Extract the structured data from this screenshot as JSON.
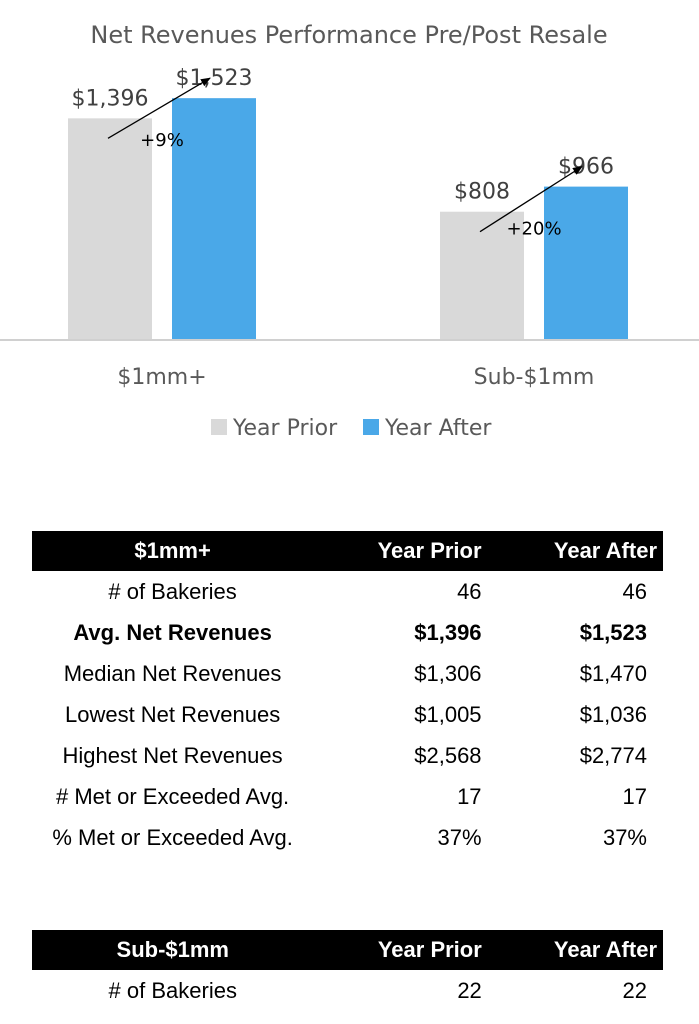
{
  "chart_data": {
    "type": "bar",
    "title": "Net Revenues Performance Pre/Post Resale",
    "categories": [
      "$1mm+",
      "Sub-$1mm"
    ],
    "series": [
      {
        "name": "Year Prior",
        "values": [
          1396,
          808
        ],
        "labels": [
          "$1,396",
          "$808"
        ],
        "color": "#d9d9d9"
      },
      {
        "name": "Year After",
        "values": [
          1523,
          966
        ],
        "labels": [
          "$1,523",
          "$966"
        ],
        "color": "#4aa8e8"
      }
    ],
    "annotations": [
      "+9%",
      "+20%"
    ],
    "ylim": [
      0,
      1650
    ],
    "grid": false,
    "legend": "bottom"
  },
  "tables": [
    {
      "headers": [
        "$1mm+",
        "Year Prior",
        "Year After"
      ],
      "rows": [
        {
          "label": "# of Bakeries",
          "prior": "46",
          "after": "46"
        },
        {
          "label": "Avg. Net Revenues",
          "prior": "$1,396",
          "after": "$1,523"
        },
        {
          "label": "Median Net Revenues",
          "prior": "$1,306",
          "after": "$1,470"
        },
        {
          "label": "Lowest Net Revenues",
          "prior": "$1,005",
          "after": "$1,036"
        },
        {
          "label": "Highest Net Revenues",
          "prior": "$2,568",
          "after": "$2,774"
        },
        {
          "label": "# Met or Exceeded Avg.",
          "prior": "17",
          "after": "17"
        },
        {
          "label": "% Met or Exceeded Avg.",
          "prior": "37%",
          "after": "37%"
        }
      ]
    },
    {
      "headers": [
        "Sub-$1mm",
        "Year Prior",
        "Year After"
      ],
      "rows": [
        {
          "label": "# of Bakeries",
          "prior": "22",
          "after": "22"
        }
      ]
    }
  ]
}
